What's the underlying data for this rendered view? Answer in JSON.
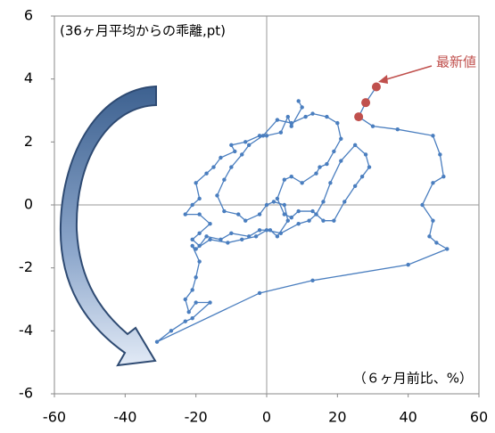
{
  "chart_data": {
    "type": "scatter-line",
    "y_label": "(36ヶ月平均からの乖離,pt)",
    "x_label": "（６ヶ月前比、%）",
    "xlim": [
      -60,
      60
    ],
    "xticks": [
      -60,
      -40,
      -20,
      0,
      20,
      40,
      60
    ],
    "ylim": [
      -6,
      6
    ],
    "yticks": [
      -6,
      -4,
      -2,
      0,
      2,
      4,
      6
    ],
    "line_color": "#4a7ebf",
    "series": [
      {
        "color": "#4a7ebf",
        "x": [
          9,
          10,
          7,
          6,
          4,
          0,
          -2,
          -6,
          -10,
          -9,
          -13,
          -15,
          -17,
          -20,
          -19,
          -21,
          -23,
          -19,
          -16,
          -19,
          -21,
          -19,
          -17,
          -13,
          -10,
          -5,
          -2,
          1,
          3,
          6,
          5,
          2,
          0,
          -2,
          -6,
          -8,
          -12,
          -14,
          -12,
          -10,
          -7,
          -5,
          -1,
          3,
          7,
          11,
          13,
          17,
          20,
          21,
          19,
          17,
          15,
          14,
          10,
          7,
          5,
          3,
          5,
          7,
          9,
          13,
          16,
          19,
          22,
          25,
          27,
          29,
          28,
          25,
          21,
          18,
          16,
          14,
          12,
          9,
          4,
          0,
          -3,
          -7,
          -11,
          -16,
          -20,
          -21,
          -19,
          -20,
          -21,
          -23,
          -22,
          -20,
          -16,
          -21,
          -23,
          -27,
          -31,
          -2,
          13,
          40,
          51,
          48,
          46,
          47,
          44,
          47,
          50,
          49,
          47,
          37,
          30
        ],
        "values": [
          3.3,
          3.1,
          2.5,
          2.8,
          2.3,
          2.2,
          2.2,
          2.0,
          1.9,
          1.7,
          1.5,
          1.2,
          1.0,
          0.7,
          0.2,
          0.0,
          -0.3,
          -0.3,
          -0.6,
          -0.9,
          -1.1,
          -1.3,
          -1.0,
          -1.1,
          -0.9,
          -1.0,
          -0.8,
          -0.8,
          -1.0,
          -0.5,
          0.0,
          0.1,
          0.0,
          -0.3,
          -0.5,
          -0.3,
          -0.2,
          0.3,
          0.8,
          1.2,
          1.6,
          1.9,
          2.2,
          2.7,
          2.6,
          2.8,
          2.9,
          2.8,
          2.6,
          2.1,
          1.7,
          1.3,
          1.2,
          1.0,
          0.7,
          0.9,
          0.8,
          0.2,
          -0.3,
          -0.4,
          -0.2,
          -0.2,
          -0.5,
          -0.5,
          0.1,
          0.6,
          0.9,
          1.2,
          1.6,
          1.9,
          1.4,
          0.7,
          0.1,
          -0.3,
          -0.5,
          -0.6,
          -0.9,
          -0.8,
          -1.0,
          -1.1,
          -1.2,
          -1.1,
          -1.4,
          -1.3,
          -1.8,
          -2.3,
          -2.7,
          -3.0,
          -3.4,
          -3.1,
          -3.1,
          -3.6,
          -3.7,
          -4.0,
          -4.35,
          -2.8,
          -2.4,
          -1.9,
          -1.4,
          -1.2,
          -1.0,
          -0.5,
          0.0,
          0.7,
          0.9,
          1.6,
          2.2,
          2.4,
          2.5
        ]
      },
      {
        "name": "最新値",
        "color": "#c0504d",
        "x": [
          26,
          28,
          31
        ],
        "values": [
          2.8,
          3.25,
          3.75
        ]
      }
    ]
  }
}
